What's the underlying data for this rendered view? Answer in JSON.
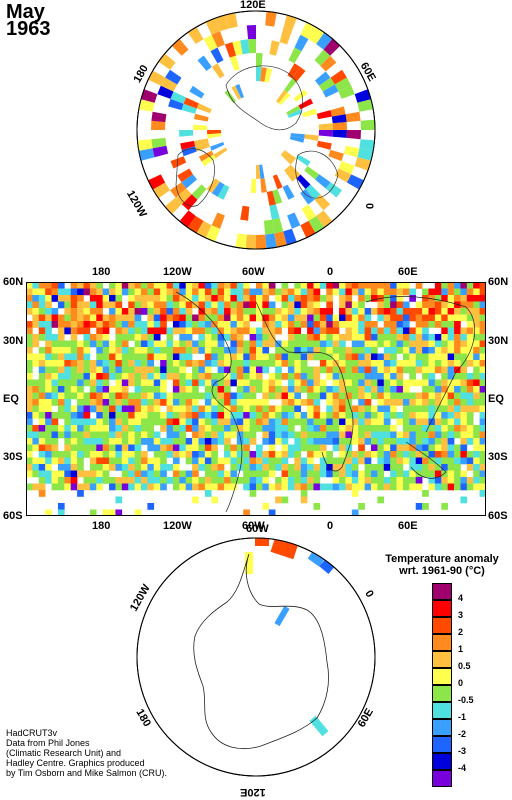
{
  "title": {
    "month": "May",
    "year": "1963"
  },
  "north_polar": {
    "labels": {
      "top": "120E",
      "left": "180",
      "right": "60E",
      "right2": "0",
      "bottom": "120W"
    }
  },
  "world_map": {
    "lat_labels": [
      "60N",
      "30N",
      "EQ",
      "30S",
      "60S"
    ],
    "lon_labels": [
      "180",
      "120W",
      "60W",
      "0",
      "60E"
    ]
  },
  "south_polar": {
    "labels": {
      "top": "60W",
      "left": "120W",
      "right": "0",
      "bottom_left": "180",
      "bottom_right": "60E",
      "bottom": "120E"
    }
  },
  "legend": {
    "title_line1": "Temperature anomaly",
    "title_line2": "wrt. 1961-90  (°C)",
    "items": [
      {
        "label": "4",
        "color": "#a0006e"
      },
      {
        "label": "3",
        "color": "#ff0000"
      },
      {
        "label": "2",
        "color": "#ff4a00"
      },
      {
        "label": "1",
        "color": "#ff8a1e"
      },
      {
        "label": "0.5",
        "color": "#ffc040"
      },
      {
        "label": "0",
        "color": "#ffff50"
      },
      {
        "label": "-0.5",
        "color": "#8ce64a"
      },
      {
        "label": "-1",
        "color": "#50e0e0"
      },
      {
        "label": "-2",
        "color": "#3aa0ff"
      },
      {
        "label": "-3",
        "color": "#1e64ff"
      },
      {
        "label": "-4",
        "color": "#0000dc"
      },
      {
        "label": "",
        "color": "#7800dc"
      }
    ]
  },
  "credits": [
    "HadCRUT3v",
    "Data from Phil Jones",
    "(Climatic Research Unit) and",
    "Hadley Centre.  Graphics produced",
    "by Tim Osborn and Mike Salmon (CRU)."
  ]
}
